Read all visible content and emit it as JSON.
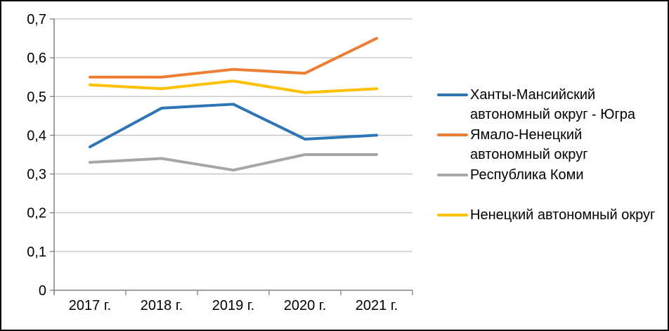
{
  "frame": {
    "background": "#ffffff",
    "border_color": "#0d0d0d"
  },
  "chart_data": {
    "type": "line",
    "title": "",
    "xlabel": "",
    "ylabel": "",
    "categories": [
      "2017 г.",
      "2018 г.",
      "2019 г.",
      "2020 г.",
      "2021 г."
    ],
    "series": [
      {
        "name": "Ханты-Мансийский автономный округ - Югра",
        "legend_lines": [
          "Ханты-Мансийский",
          "автономный округ - Югра"
        ],
        "color": "#2E75B6",
        "values": [
          0.37,
          0.47,
          0.48,
          0.39,
          0.4
        ]
      },
      {
        "name": "Ямало-Ненецкий автономный округ",
        "legend_lines": [
          "Ямало-Ненецкий",
          "автономный округ"
        ],
        "color": "#ED7D31",
        "values": [
          0.55,
          0.55,
          0.57,
          0.56,
          0.65
        ]
      },
      {
        "name": "Республика Коми",
        "legend_lines": [
          "Республика Коми"
        ],
        "color": "#A6A6A6",
        "values": [
          0.33,
          0.34,
          0.31,
          0.35,
          0.35
        ]
      },
      {
        "name": "Ненецкий автономный округ",
        "legend_lines": [
          "Ненецкий автономный округ"
        ],
        "color": "#FFC000",
        "values": [
          0.53,
          0.52,
          0.54,
          0.51,
          0.52
        ]
      }
    ],
    "ylim": [
      0,
      0.7
    ],
    "y_tick_step": 0.1,
    "y_tick_labels": [
      "0",
      "0,1",
      "0,2",
      "0,3",
      "0,4",
      "0,5",
      "0,6",
      "0,7"
    ],
    "grid": true,
    "legend_position": "right",
    "gridline_color": "#BFBFBF",
    "axis_color": "#808080",
    "text_color": "#000000",
    "line_width": 4
  }
}
